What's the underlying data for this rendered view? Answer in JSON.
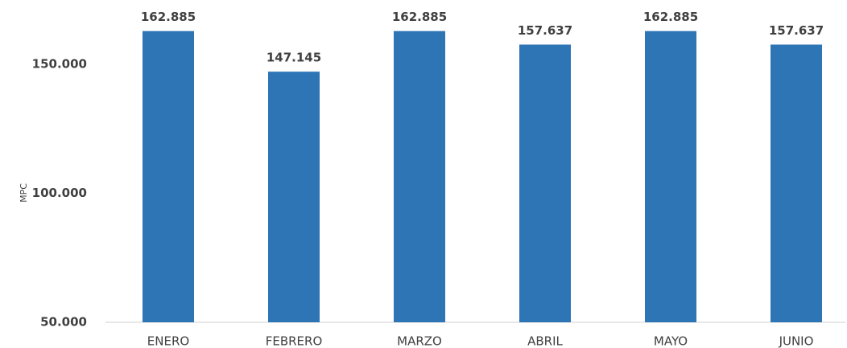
{
  "chart_data": {
    "type": "bar",
    "y_label": "MPC",
    "categories": [
      "ENERO",
      "FEBRERO",
      "MARZO",
      "ABRIL",
      "MAYO",
      "JUNIO"
    ],
    "values": [
      162885,
      147145,
      162885,
      157637,
      162885,
      157637
    ],
    "value_labels": [
      "162.885",
      "147.145",
      "162.885",
      "157.637",
      "162.885",
      "157.637"
    ],
    "color": "#2e75b6",
    "ylim": [
      50000,
      170000
    ],
    "yticks": [
      {
        "value": 50000,
        "label": "50.000"
      },
      {
        "value": 100000,
        "label": "100.000"
      },
      {
        "value": 150000,
        "label": "150.000"
      }
    ],
    "grid": false
  }
}
